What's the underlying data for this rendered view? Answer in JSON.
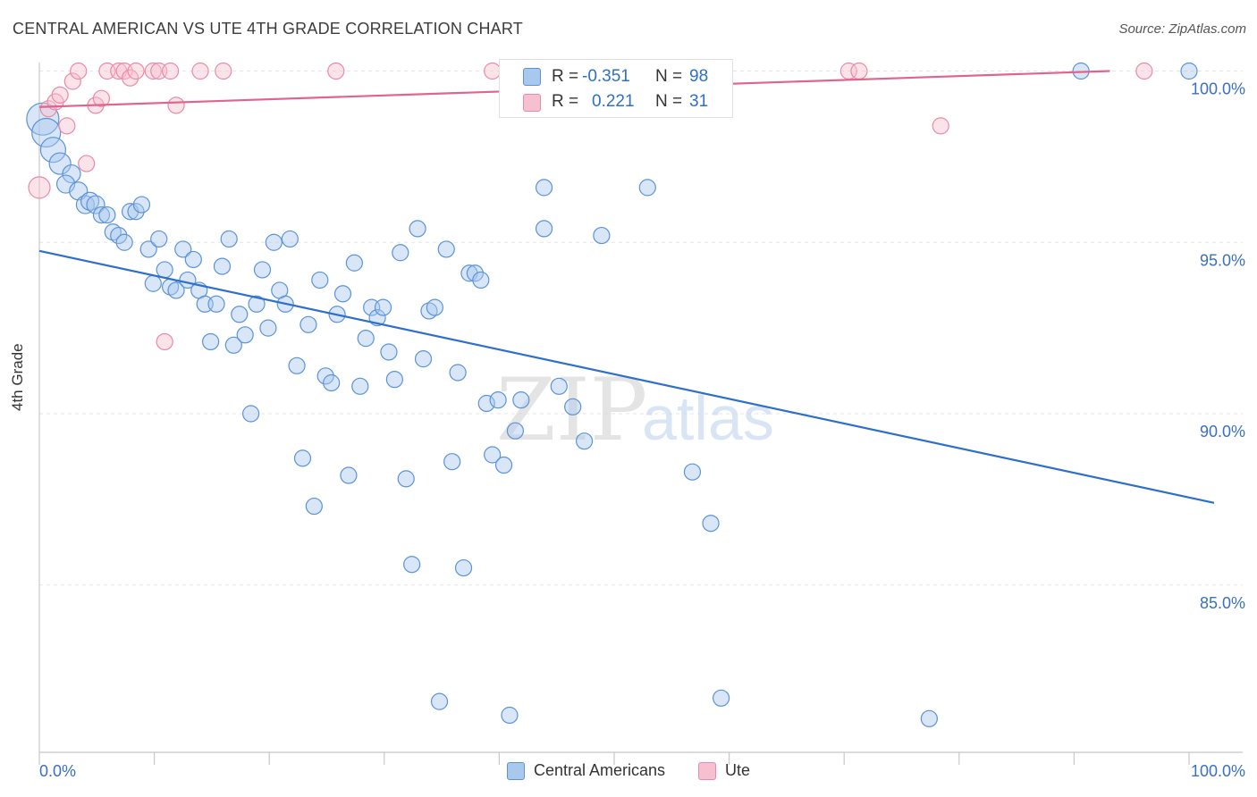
{
  "header": {
    "title": "CENTRAL AMERICAN VS UTE 4TH GRADE CORRELATION CHART",
    "source": "Source: ZipAtlas.com"
  },
  "watermark": {
    "part1": "ZIP",
    "part2": "atlas"
  },
  "stats": {
    "rows": [
      {
        "r_label": "R =",
        "r_value": "-0.351",
        "n_label": "N =",
        "n_value": "98"
      },
      {
        "r_label": "R =",
        "r_value": "0.221",
        "n_label": "N =",
        "n_value": "31"
      }
    ]
  },
  "legend": {
    "items": [
      {
        "label": "Central Americans"
      },
      {
        "label": "Ute"
      }
    ]
  },
  "colors": {
    "blue_fill": "#a9c8ee",
    "blue_stroke": "#5b93d6",
    "blue_line": "#2e6fcc",
    "pink_fill": "#f6c0d0",
    "pink_stroke": "#e98aa8",
    "pink_line": "#e0648c",
    "tick_text": "#3a6fc4",
    "grid": "#e6e6e6"
  },
  "chart_data": {
    "type": "scatter",
    "xlabel": "",
    "ylabel": "4th Grade",
    "xlim": [
      0,
      100
    ],
    "ylim": [
      80.5,
      100.8
    ],
    "x_tick_labels": [
      "0.0%",
      "100.0%"
    ],
    "y_ticks": [
      {
        "value": 100,
        "label": "100.0%"
      },
      {
        "value": 95,
        "label": "95.0%"
      },
      {
        "value": 90,
        "label": "90.0%"
      },
      {
        "value": 85,
        "label": "85.0%"
      }
    ],
    "legend_position": "bottom-center",
    "grid": true,
    "series": [
      {
        "name": "Central Americans",
        "color": "#5b93d6",
        "r": -0.351,
        "n": 98,
        "trend": {
          "x": [
            0,
            100
          ],
          "y": [
            94.75,
            87.45
          ]
        },
        "points": [
          [
            0.3,
            98.6,
            18
          ],
          [
            0.6,
            98.2,
            16
          ],
          [
            1.2,
            97.7,
            14
          ],
          [
            1.8,
            97.3,
            12
          ],
          [
            2.8,
            97.0,
            10
          ],
          [
            2.3,
            96.7,
            10
          ],
          [
            3.4,
            96.5,
            10
          ],
          [
            4.0,
            96.1,
            10
          ],
          [
            4.4,
            96.2,
            10
          ],
          [
            4.9,
            96.1,
            10
          ],
          [
            5.4,
            95.8,
            9
          ],
          [
            5.9,
            95.8,
            9
          ],
          [
            6.4,
            95.3,
            9
          ],
          [
            6.9,
            95.2,
            9
          ],
          [
            7.4,
            95.0,
            9
          ],
          [
            7.9,
            95.9,
            9
          ],
          [
            8.4,
            95.9,
            9
          ],
          [
            8.9,
            96.1,
            9
          ],
          [
            9.5,
            94.8,
            9
          ],
          [
            10.4,
            95.1,
            9
          ],
          [
            9.9,
            93.8,
            9
          ],
          [
            10.9,
            94.2,
            9
          ],
          [
            11.4,
            93.7,
            9
          ],
          [
            11.9,
            93.6,
            9
          ],
          [
            12.5,
            94.8,
            9
          ],
          [
            12.9,
            93.9,
            9
          ],
          [
            13.4,
            94.5,
            9
          ],
          [
            13.9,
            93.6,
            9
          ],
          [
            14.4,
            93.2,
            9
          ],
          [
            14.9,
            92.1,
            9
          ],
          [
            15.4,
            93.2,
            9
          ],
          [
            15.9,
            94.3,
            9
          ],
          [
            16.5,
            95.1,
            9
          ],
          [
            16.9,
            92.0,
            9
          ],
          [
            17.4,
            92.9,
            9
          ],
          [
            17.9,
            92.3,
            9
          ],
          [
            18.4,
            90.0,
            9
          ],
          [
            18.9,
            93.2,
            9
          ],
          [
            19.4,
            94.2,
            9
          ],
          [
            19.9,
            92.5,
            9
          ],
          [
            20.4,
            95.0,
            9
          ],
          [
            20.9,
            93.6,
            9
          ],
          [
            21.4,
            93.2,
            9
          ],
          [
            21.8,
            95.1,
            9
          ],
          [
            22.4,
            91.4,
            9
          ],
          [
            22.9,
            88.7,
            9
          ],
          [
            23.4,
            92.6,
            9
          ],
          [
            23.9,
            87.3,
            9
          ],
          [
            24.4,
            93.9,
            9
          ],
          [
            24.9,
            91.1,
            9
          ],
          [
            25.4,
            90.9,
            9
          ],
          [
            25.9,
            92.9,
            9
          ],
          [
            26.4,
            93.5,
            9
          ],
          [
            26.9,
            88.2,
            9
          ],
          [
            27.4,
            94.4,
            9
          ],
          [
            27.9,
            90.8,
            9
          ],
          [
            28.4,
            92.2,
            9
          ],
          [
            28.9,
            93.1,
            9
          ],
          [
            29.4,
            92.8,
            9
          ],
          [
            29.9,
            93.1,
            9
          ],
          [
            30.4,
            91.8,
            9
          ],
          [
            30.9,
            91.0,
            9
          ],
          [
            31.4,
            94.7,
            9
          ],
          [
            31.9,
            88.1,
            9
          ],
          [
            32.4,
            85.6,
            9
          ],
          [
            32.9,
            95.4,
            9
          ],
          [
            33.4,
            91.6,
            9
          ],
          [
            33.9,
            93.0,
            9
          ],
          [
            34.4,
            93.1,
            9
          ],
          [
            34.8,
            81.6,
            9
          ],
          [
            35.4,
            94.8,
            9
          ],
          [
            35.9,
            88.6,
            9
          ],
          [
            36.4,
            91.2,
            9
          ],
          [
            36.9,
            85.5,
            9
          ],
          [
            37.4,
            94.1,
            9
          ],
          [
            37.9,
            94.1,
            9
          ],
          [
            38.4,
            93.9,
            9
          ],
          [
            38.9,
            90.3,
            9
          ],
          [
            39.4,
            88.8,
            9
          ],
          [
            39.9,
            90.4,
            9
          ],
          [
            40.4,
            88.5,
            9
          ],
          [
            40.9,
            81.2,
            9
          ],
          [
            41.4,
            89.5,
            9
          ],
          [
            41.9,
            90.4,
            9
          ],
          [
            43.9,
            96.6,
            9
          ],
          [
            43.9,
            95.4,
            9
          ],
          [
            45.2,
            90.8,
            9
          ],
          [
            46.4,
            90.2,
            9
          ],
          [
            47.4,
            89.2,
            9
          ],
          [
            48.9,
            95.2,
            9
          ],
          [
            49.4,
            100.0,
            9
          ],
          [
            52.9,
            96.6,
            9
          ],
          [
            56.8,
            88.3,
            9
          ],
          [
            58.4,
            86.8,
            9
          ],
          [
            59.3,
            81.7,
            9
          ],
          [
            77.4,
            81.1,
            9
          ],
          [
            90.6,
            100.0,
            9
          ],
          [
            100.0,
            100.0,
            9
          ]
        ]
      },
      {
        "name": "Ute",
        "color": "#e98aa8",
        "r": 0.221,
        "n": 31,
        "trend": {
          "x": [
            0,
            90
          ],
          "y": [
            98.95,
            100.0
          ]
        },
        "points": [
          [
            0.0,
            96.6,
            12
          ],
          [
            0.8,
            98.9,
            9
          ],
          [
            1.4,
            99.1,
            9
          ],
          [
            1.8,
            99.3,
            9
          ],
          [
            2.4,
            98.4,
            9
          ],
          [
            2.9,
            99.7,
            9
          ],
          [
            3.4,
            100.0,
            9
          ],
          [
            4.1,
            97.3,
            9
          ],
          [
            4.9,
            99.0,
            9
          ],
          [
            5.9,
            100.0,
            9
          ],
          [
            5.4,
            99.2,
            9
          ],
          [
            6.9,
            100.0,
            9
          ],
          [
            7.4,
            100.0,
            9
          ],
          [
            7.9,
            99.8,
            9
          ],
          [
            8.4,
            100.0,
            9
          ],
          [
            9.9,
            100.0,
            9
          ],
          [
            10.4,
            100.0,
            9
          ],
          [
            10.9,
            92.1,
            9
          ],
          [
            11.4,
            100.0,
            9
          ],
          [
            11.9,
            99.0,
            9
          ],
          [
            14.0,
            100.0,
            9
          ],
          [
            16.0,
            100.0,
            9
          ],
          [
            25.8,
            100.0,
            9
          ],
          [
            39.4,
            100.0,
            9
          ],
          [
            44.4,
            100.0,
            9
          ],
          [
            47.4,
            100.0,
            9
          ],
          [
            56.8,
            100.0,
            9
          ],
          [
            70.4,
            100.0,
            9
          ],
          [
            71.3,
            100.0,
            9
          ],
          [
            78.4,
            98.4,
            9
          ],
          [
            96.1,
            100.0,
            9
          ]
        ]
      }
    ]
  }
}
